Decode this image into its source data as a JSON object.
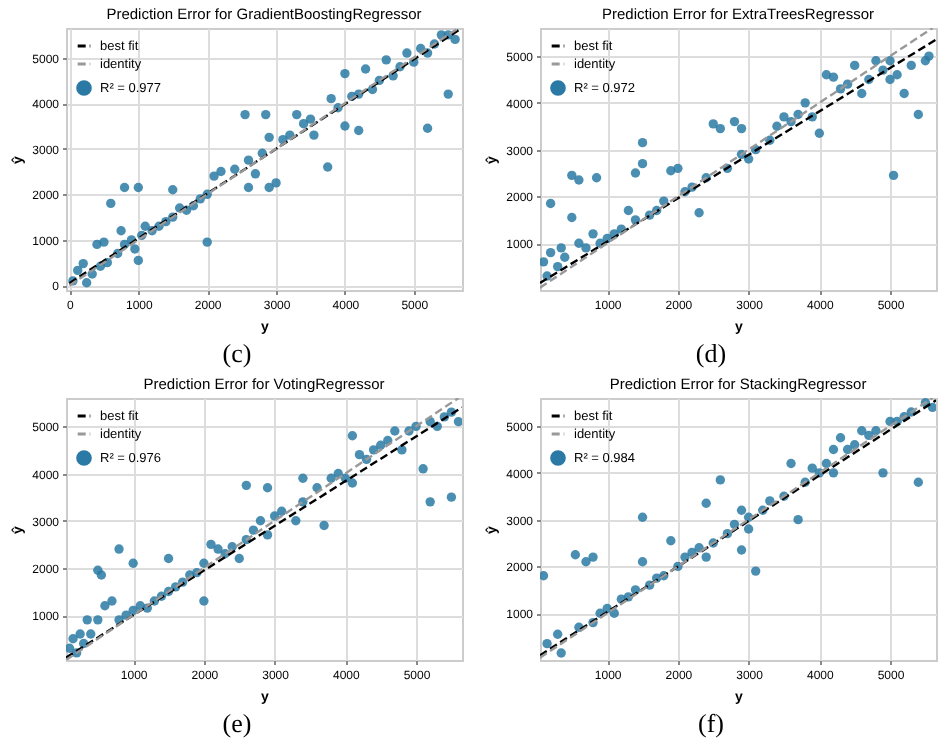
{
  "chart_data": [
    {
      "type": "scatter",
      "title": "Prediction Error for GradientBoostingRegressor",
      "xlabel": "y",
      "ylabel": "ŷ",
      "xlim": [
        -50,
        5700
      ],
      "ylim": [
        -100,
        5650
      ],
      "xticks": [
        0,
        1000,
        2000,
        3000,
        4000,
        5000
      ],
      "yticks": [
        0,
        1000,
        2000,
        3000,
        4000,
        5000
      ],
      "grid": true,
      "legend": "top left",
      "marker": "circle",
      "annotations": [
        "(c)"
      ],
      "series": [
        {
          "name": "best fit",
          "type": "line",
          "marker": "none",
          "color": "#000000",
          "line_style": "dashed",
          "x": [
            0,
            5650
          ],
          "values": [
            50,
            5600
          ]
        },
        {
          "name": "identity",
          "type": "line",
          "marker": "none",
          "color": "#999999",
          "line_style": "dashed",
          "x": [
            0,
            5650
          ],
          "values": [
            0,
            5650
          ]
        },
        {
          "name": "R² = 0.977",
          "type": "scatter",
          "color": "#2a7aa5",
          "x": [
            50,
            120,
            250,
            200,
            330,
            400,
            450,
            500,
            550,
            600,
            700,
            750,
            800,
            800,
            900,
            950,
            1000,
            1000,
            1050,
            1100,
            1200,
            1300,
            1400,
            1500,
            1500,
            1600,
            1700,
            1800,
            1900,
            2000,
            2000,
            2100,
            2200,
            2400,
            2550,
            2600,
            2600,
            2700,
            2800,
            2850,
            2900,
            2900,
            3000,
            3100,
            3200,
            3300,
            3400,
            3500,
            3550,
            3750,
            3800,
            3900,
            4000,
            4000,
            4100,
            4200,
            4200,
            4300,
            4400,
            4500,
            4600,
            4700,
            4800,
            4900,
            5000,
            5100,
            5200,
            5200,
            5300,
            5400,
            5500,
            5500,
            5600
          ],
          "values": [
            100,
            330,
            60,
            480,
            250,
            900,
            420,
            950,
            500,
            1800,
            700,
            1200,
            900,
            2150,
            1000,
            800,
            2150,
            550,
            1100,
            1300,
            1200,
            1300,
            1400,
            2100,
            1500,
            1700,
            1650,
            1750,
            1900,
            950,
            2000,
            2400,
            2500,
            2550,
            3750,
            2750,
            2150,
            2450,
            2900,
            3750,
            2150,
            3250,
            2250,
            3200,
            3300,
            3750,
            3550,
            3650,
            3300,
            2600,
            4100,
            3900,
            3500,
            4650,
            4150,
            3400,
            4200,
            4750,
            4300,
            4500,
            4950,
            4600,
            4800,
            5100,
            4900,
            5200,
            3450,
            5100,
            5300,
            5500,
            4200,
            5500,
            5400
          ]
        }
      ]
    },
    {
      "type": "scatter",
      "title": "Prediction Error for ExtraTreesRegressor",
      "xlabel": "y",
      "ylabel": "ŷ",
      "xlim": [
        50,
        5650
      ],
      "ylim": [
        0,
        5600
      ],
      "xticks": [
        1000,
        2000,
        3000,
        4000,
        5000
      ],
      "yticks": [
        1000,
        2000,
        3000,
        4000,
        5000
      ],
      "grid": true,
      "legend": "top left",
      "marker": "circle",
      "annotations": [
        "(d)"
      ],
      "series": [
        {
          "name": "best fit",
          "type": "line",
          "marker": "none",
          "color": "#000000",
          "line_style": "dashed",
          "x": [
            50,
            5650
          ],
          "values": [
            150,
            5350
          ]
        },
        {
          "name": "identity",
          "type": "line",
          "marker": "none",
          "color": "#999999",
          "line_style": "dashed",
          "x": [
            50,
            5600
          ],
          "values": [
            50,
            5600
          ]
        },
        {
          "name": "R² = 0.972",
          "type": "scatter",
          "color": "#2a7aa5",
          "x": [
            100,
            150,
            200,
            200,
            300,
            350,
            400,
            500,
            500,
            600,
            600,
            700,
            800,
            850,
            900,
            1000,
            1100,
            1200,
            1300,
            1400,
            1400,
            1500,
            1500,
            1600,
            1700,
            1800,
            1900,
            2000,
            2100,
            2200,
            2300,
            2400,
            2500,
            2600,
            2700,
            2800,
            2900,
            2900,
            3000,
            3100,
            3300,
            3400,
            3500,
            3600,
            3700,
            3800,
            3900,
            4000,
            4100,
            4200,
            4300,
            4400,
            4500,
            4600,
            4700,
            4800,
            4900,
            5000,
            5000,
            5050,
            5100,
            5200,
            5300,
            5400,
            5500,
            5550
          ],
          "values": [
            600,
            300,
            1850,
            800,
            500,
            900,
            700,
            2450,
            1550,
            2350,
            1000,
            900,
            1200,
            2400,
            1000,
            1100,
            1200,
            1300,
            1700,
            2500,
            1500,
            3150,
            2700,
            1600,
            1700,
            1900,
            2550,
            2600,
            2100,
            2200,
            1650,
            2400,
            3550,
            3450,
            2600,
            3600,
            3450,
            2900,
            2800,
            3000,
            3200,
            3500,
            3700,
            3600,
            3750,
            4000,
            3700,
            3350,
            4600,
            4550,
            4300,
            4400,
            4800,
            4200,
            4500,
            4900,
            4700,
            4500,
            4900,
            2450,
            4600,
            4200,
            4800,
            3750,
            4900,
            5000
          ]
        }
      ]
    },
    {
      "type": "scatter",
      "title": "Prediction Error for VotingRegressor",
      "xlabel": "y",
      "ylabel": "ŷ",
      "xlim": [
        50,
        5650
      ],
      "ylim": [
        50,
        5600
      ],
      "xticks": [
        1000,
        2000,
        3000,
        4000,
        5000
      ],
      "yticks": [
        1000,
        2000,
        3000,
        4000,
        5000
      ],
      "grid": true,
      "legend": "top left",
      "marker": "circle",
      "annotations": [
        "(e)"
      ],
      "series": [
        {
          "name": "best fit",
          "type": "line",
          "marker": "none",
          "color": "#000000",
          "line_style": "dashed",
          "x": [
            50,
            5650
          ],
          "values": [
            100,
            5400
          ]
        },
        {
          "name": "identity",
          "type": "line",
          "marker": "none",
          "color": "#999999",
          "line_style": "dashed",
          "x": [
            50,
            5600
          ],
          "values": [
            50,
            5600
          ]
        },
        {
          "name": "R² = 0.976",
          "type": "scatter",
          "color": "#2a7aa5",
          "x": [
            100,
            150,
            200,
            250,
            300,
            350,
            400,
            500,
            500,
            550,
            600,
            700,
            800,
            800,
            900,
            1000,
            1000,
            1100,
            1200,
            1300,
            1400,
            1500,
            1500,
            1600,
            1700,
            1800,
            1900,
            2000,
            2000,
            2100,
            2200,
            2300,
            2400,
            2500,
            2600,
            2600,
            2700,
            2800,
            2900,
            2900,
            3000,
            3100,
            3300,
            3400,
            3400,
            3600,
            3700,
            3800,
            3900,
            4000,
            4100,
            4100,
            4200,
            4300,
            4400,
            4500,
            4600,
            4700,
            4800,
            4900,
            5000,
            5100,
            5200,
            5200,
            5300,
            5400,
            5500,
            5500,
            5600
          ],
          "values": [
            300,
            500,
            200,
            600,
            400,
            900,
            600,
            900,
            1950,
            1850,
            1200,
            1300,
            2400,
            900,
            1000,
            1100,
            2100,
            1200,
            1150,
            1300,
            1400,
            2200,
            1500,
            1600,
            1700,
            1850,
            1900,
            1300,
            2100,
            2500,
            2400,
            2300,
            2450,
            2200,
            3750,
            2600,
            2800,
            3000,
            3700,
            2700,
            3100,
            3200,
            3000,
            3900,
            3400,
            3700,
            2900,
            3900,
            4000,
            3900,
            4800,
            3800,
            4400,
            4300,
            4500,
            4600,
            4700,
            4900,
            4500,
            4900,
            5000,
            4100,
            3400,
            5100,
            5000,
            5200,
            3500,
            5300,
            5100
          ]
        }
      ]
    },
    {
      "type": "scatter",
      "title": "Prediction Error for StackingRegressor",
      "xlabel": "y",
      "ylabel": "ŷ",
      "xlim": [
        50,
        5650
      ],
      "ylim": [
        0,
        5600
      ],
      "xticks": [
        1000,
        2000,
        3000,
        4000,
        5000
      ],
      "yticks": [
        1000,
        2000,
        3000,
        4000,
        5000
      ],
      "grid": true,
      "legend": "top left",
      "marker": "circle",
      "annotations": [
        "(f)"
      ],
      "series": [
        {
          "name": "best fit",
          "type": "line",
          "marker": "none",
          "color": "#000000",
          "line_style": "dashed",
          "x": [
            50,
            5650
          ],
          "values": [
            100,
            5550
          ]
        },
        {
          "name": "identity",
          "type": "line",
          "marker": "none",
          "color": "#999999",
          "line_style": "dashed",
          "x": [
            50,
            5600
          ],
          "values": [
            50,
            5600
          ]
        },
        {
          "name": "R² = 0.984",
          "type": "scatter",
          "color": "#2a7aa5",
          "x": [
            100,
            150,
            350,
            300,
            550,
            600,
            700,
            800,
            800,
            900,
            1000,
            1100,
            1200,
            1300,
            1400,
            1500,
            1500,
            1600,
            1700,
            1800,
            1900,
            2000,
            2100,
            2200,
            2300,
            2400,
            2400,
            2500,
            2600,
            2700,
            2800,
            2900,
            2900,
            3000,
            3000,
            3100,
            3200,
            3300,
            3500,
            3600,
            3700,
            3800,
            3900,
            4000,
            4100,
            4200,
            4200,
            4300,
            4400,
            4500,
            4600,
            4700,
            4800,
            4900,
            5000,
            5100,
            5200,
            5300,
            5400,
            5500,
            5600
          ],
          "values": [
            1800,
            350,
            150,
            550,
            2250,
            700,
            2100,
            2200,
            800,
            1000,
            1100,
            1000,
            1300,
            1350,
            1500,
            3050,
            2100,
            1600,
            1750,
            1800,
            2550,
            2000,
            2200,
            2300,
            2400,
            3350,
            2200,
            2500,
            3850,
            2700,
            2900,
            2350,
            3200,
            3050,
            2800,
            1900,
            3200,
            3400,
            3500,
            4200,
            3000,
            3800,
            4100,
            4000,
            4200,
            4000,
            4500,
            4750,
            4500,
            4600,
            4900,
            4800,
            4900,
            4000,
            5100,
            5100,
            5200,
            5300,
            3800,
            5500,
            5400
          ]
        }
      ]
    }
  ]
}
